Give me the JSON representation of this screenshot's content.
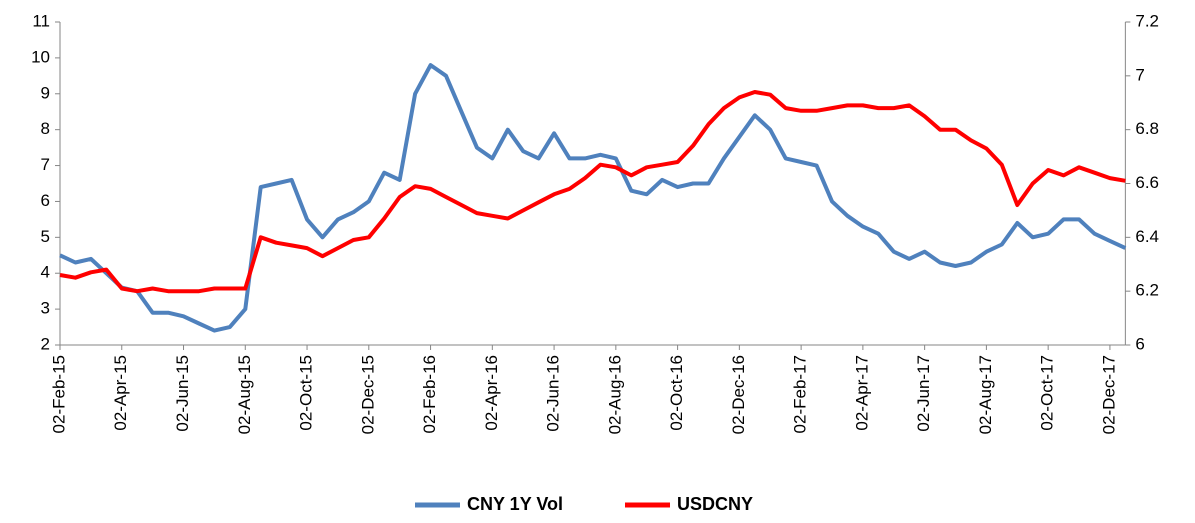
{
  "chart_data": {
    "type": "line",
    "categories": [
      "02-Feb-15",
      null,
      null,
      null,
      "02-Apr-15",
      null,
      null,
      null,
      "02-Jun-15",
      null,
      null,
      null,
      "02-Aug-15",
      null,
      null,
      null,
      "02-Oct-15",
      null,
      null,
      null,
      "02-Dec-15",
      null,
      null,
      null,
      "02-Feb-16",
      null,
      null,
      null,
      "02-Apr-16",
      null,
      null,
      null,
      "02-Jun-16",
      null,
      null,
      null,
      "02-Aug-16",
      null,
      null,
      null,
      "02-Oct-16",
      null,
      null,
      null,
      "02-Dec-16",
      null,
      null,
      null,
      "02-Feb-17",
      null,
      null,
      null,
      "02-Apr-17",
      null,
      null,
      null,
      "02-Jun-17",
      null,
      null,
      null,
      "02-Aug-17",
      null,
      null,
      null,
      "02-Oct-17",
      null,
      null,
      null,
      "02-Dec-17",
      null
    ],
    "series": [
      {
        "name": "CNY 1Y Vol",
        "color": "#4f81bd",
        "axis": "y",
        "values": [
          4.5,
          4.3,
          4.4,
          4.0,
          3.6,
          3.5,
          2.9,
          2.9,
          2.8,
          2.6,
          2.4,
          2.5,
          3.0,
          6.4,
          6.5,
          6.6,
          5.5,
          5.0,
          5.5,
          5.7,
          6.0,
          6.8,
          6.6,
          9.0,
          9.8,
          9.5,
          8.5,
          7.5,
          7.2,
          8.0,
          7.4,
          7.2,
          7.9,
          7.2,
          7.2,
          7.3,
          7.2,
          6.3,
          6.2,
          6.6,
          6.4,
          6.5,
          6.5,
          7.2,
          7.8,
          8.4,
          8.0,
          7.2,
          7.1,
          7.0,
          6.0,
          5.6,
          5.3,
          5.1,
          4.6,
          4.4,
          4.6,
          4.3,
          4.2,
          4.3,
          4.6,
          4.8,
          5.4,
          5.0,
          5.1,
          5.5,
          5.5,
          5.1,
          4.9,
          4.7
        ]
      },
      {
        "name": "USDCNY",
        "color": "#ff0000",
        "axis": "y2",
        "values": [
          6.26,
          6.25,
          6.27,
          6.28,
          6.21,
          6.2,
          6.21,
          6.2,
          6.2,
          6.2,
          6.21,
          6.21,
          6.21,
          6.4,
          6.38,
          6.37,
          6.36,
          6.33,
          6.36,
          6.39,
          6.4,
          6.47,
          6.55,
          6.59,
          6.58,
          6.55,
          6.52,
          6.49,
          6.48,
          6.47,
          6.5,
          6.53,
          6.56,
          6.58,
          6.62,
          6.67,
          6.66,
          6.63,
          6.66,
          6.67,
          6.68,
          6.74,
          6.82,
          6.88,
          6.92,
          6.94,
          6.93,
          6.88,
          6.87,
          6.87,
          6.88,
          6.89,
          6.89,
          6.88,
          6.88,
          6.89,
          6.85,
          6.8,
          6.8,
          6.76,
          6.73,
          6.67,
          6.52,
          6.6,
          6.65,
          6.63,
          6.66,
          6.64,
          6.62,
          6.61
        ]
      }
    ],
    "ylim": [
      2,
      11
    ],
    "yticks": [
      2,
      3,
      4,
      5,
      6,
      7,
      8,
      9,
      10,
      11
    ],
    "y2lim": [
      6,
      7.2
    ],
    "y2ticks": [
      6,
      6.2,
      6.4,
      6.6,
      6.8,
      7,
      7.2
    ],
    "legend": "bottom"
  }
}
